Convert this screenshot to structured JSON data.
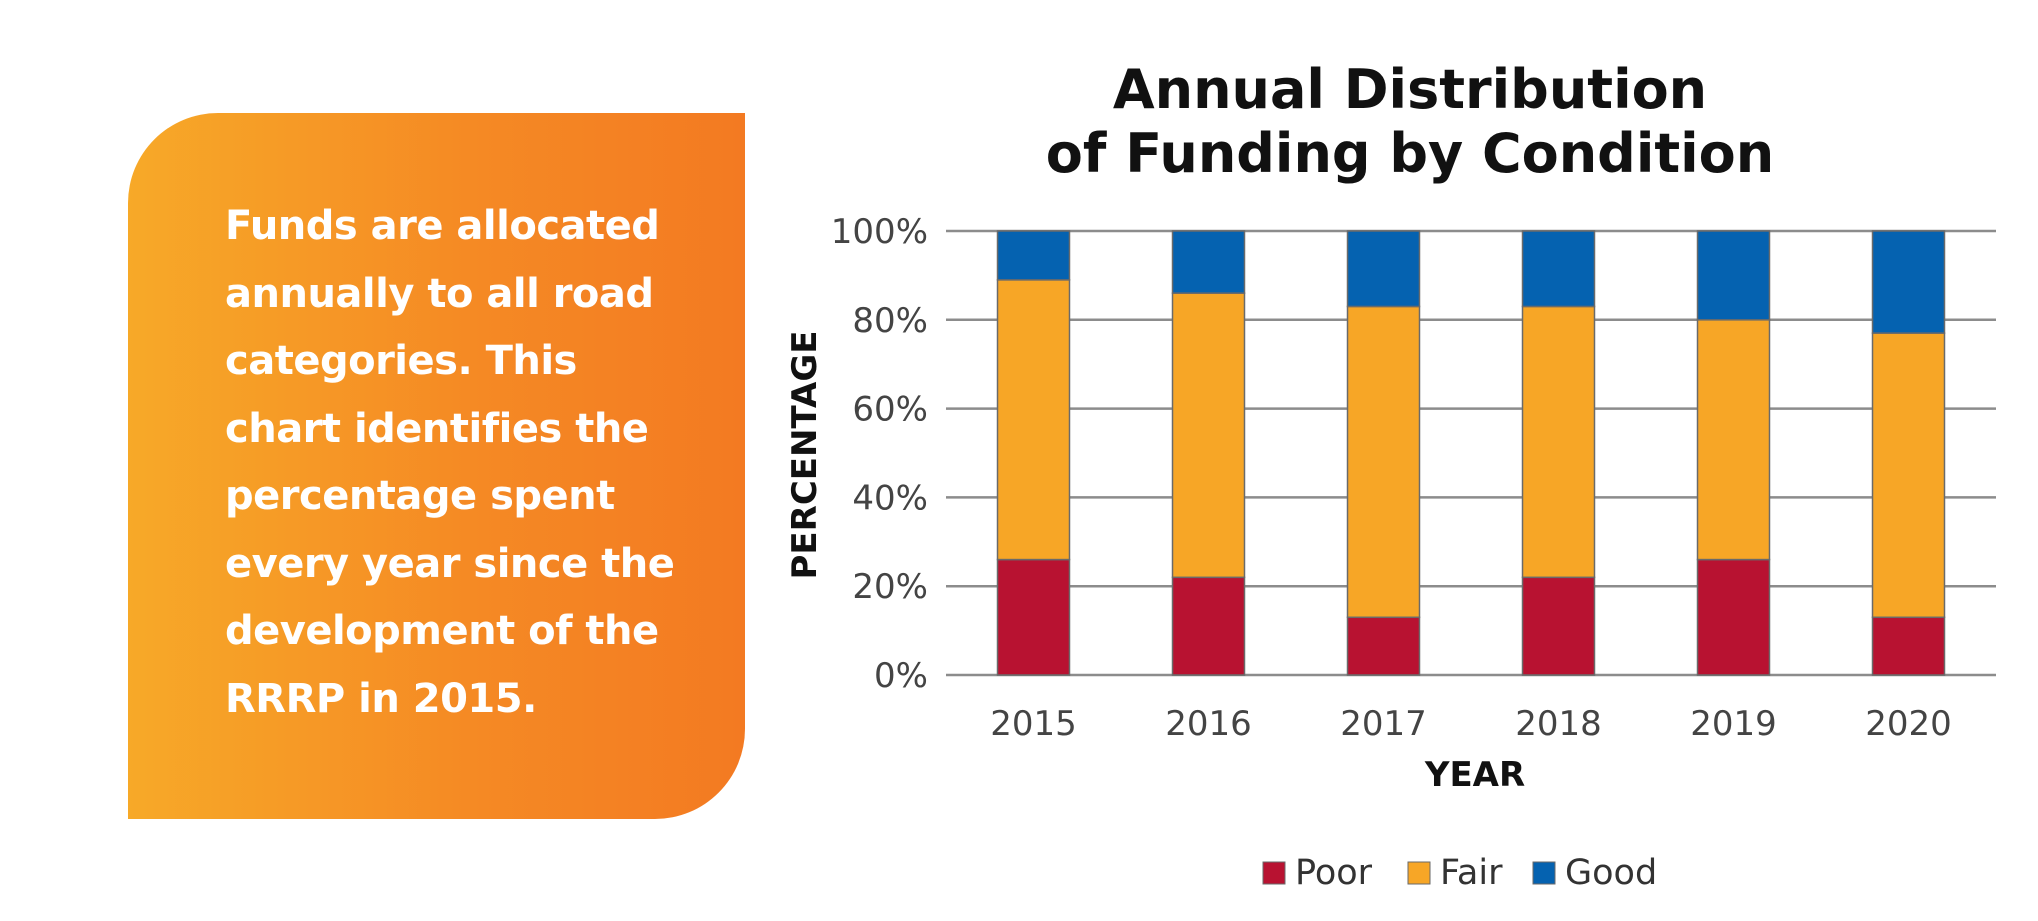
{
  "callout": {
    "text": "Funds are allocated\nannually to all road\ncategories. This\nchart identifies  the\npercentage spent\nevery year since the\ndevelopment of the\nRRRP in 2015."
  },
  "chart_data": {
    "type": "bar",
    "stacked": true,
    "title_lines": [
      "Annual Distribution",
      "of Funding by Condition"
    ],
    "xlabel": "YEAR",
    "ylabel": "PERCENTAGE",
    "categories": [
      "2015",
      "2016",
      "2017",
      "2018",
      "2019",
      "2020"
    ],
    "series": [
      {
        "name": "Poor",
        "color": "#B81231",
        "values": [
          26,
          22,
          13,
          22,
          26,
          13
        ]
      },
      {
        "name": "Fair",
        "color": "#F7A626",
        "values": [
          63,
          64,
          70,
          61,
          54,
          64
        ]
      },
      {
        "name": "Good",
        "color": "#0562B0",
        "values": [
          11,
          14,
          17,
          17,
          20,
          23
        ]
      }
    ],
    "ylim": [
      0,
      100
    ],
    "yticks": [
      0,
      20,
      40,
      60,
      80,
      100
    ],
    "ytick_labels": [
      "0%",
      "20%",
      "40%",
      "60%",
      "80%",
      "100%"
    ],
    "grid": true,
    "legend_position": "bottom"
  }
}
